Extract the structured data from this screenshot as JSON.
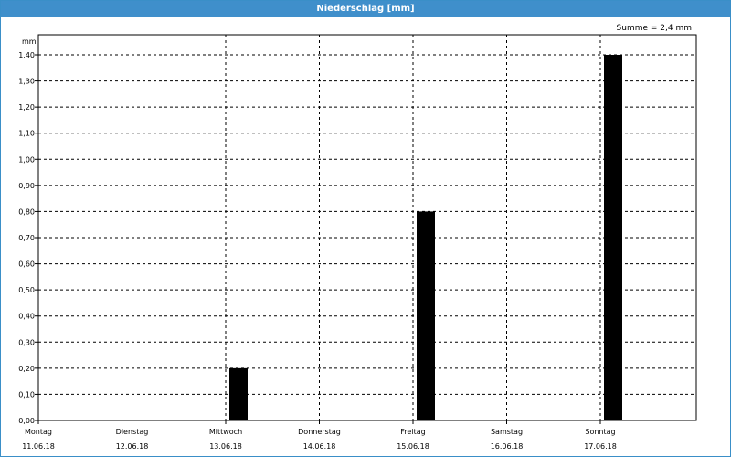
{
  "window": {
    "title": "Niederschlag [mm]"
  },
  "summary": "Summe = 2,4 mm",
  "chart_data": {
    "type": "bar",
    "title": "Niederschlag [mm]",
    "ylabel": "mm",
    "xlabel": "",
    "ylim": [
      0,
      1.5
    ],
    "yticks": [
      "0,00",
      "0,10",
      "0,20",
      "0,30",
      "0,40",
      "0,50",
      "0,60",
      "0,70",
      "0,80",
      "0,90",
      "1,00",
      "1,10",
      "1,20",
      "1,30",
      "1,40"
    ],
    "categories": [
      {
        "day": "Montag",
        "date": "11.06.18"
      },
      {
        "day": "Dienstag",
        "date": "12.06.18"
      },
      {
        "day": "Mittwoch",
        "date": "13.06.18"
      },
      {
        "day": "Donnerstag",
        "date": "14.06.18"
      },
      {
        "day": "Freitag",
        "date": "15.06.18"
      },
      {
        "day": "Samstag",
        "date": "16.06.18"
      },
      {
        "day": "Sonntag",
        "date": "17.06.18"
      }
    ],
    "bars": [
      {
        "day_index": 2,
        "value": 0.2
      },
      {
        "day_index": 4,
        "value": 0.8
      },
      {
        "day_index": 6,
        "value": 1.4
      }
    ],
    "grid": true,
    "bar_color": "#000000",
    "grid_color": "#000000"
  }
}
